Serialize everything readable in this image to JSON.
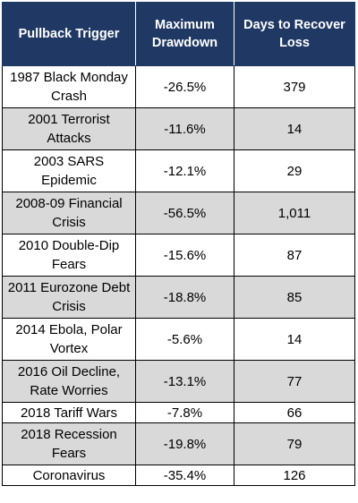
{
  "headers": {
    "trigger": "Pullback Trigger",
    "drawdown": "Maximum Drawdown",
    "days": "Days to Recover Loss"
  },
  "rows": [
    {
      "trigger": "1987 Black Monday Crash",
      "drawdown": "-26.5%",
      "days": "379"
    },
    {
      "trigger": "2001 Terrorist Attacks",
      "drawdown": "-11.6%",
      "days": "14"
    },
    {
      "trigger": "2003 SARS Epidemic",
      "drawdown": "-12.1%",
      "days": "29"
    },
    {
      "trigger": "2008-09 Financial Crisis",
      "drawdown": "-56.5%",
      "days": "1,011"
    },
    {
      "trigger": "2010 Double-Dip Fears",
      "drawdown": "-15.6%",
      "days": "87"
    },
    {
      "trigger": "2011 Eurozone Debt Crisis",
      "drawdown": "-18.8%",
      "days": "85"
    },
    {
      "trigger": "2014 Ebola, Polar Vortex",
      "drawdown": "-5.6%",
      "days": "14"
    },
    {
      "trigger": "2016 Oil Decline, Rate Worries",
      "drawdown": "-13.1%",
      "days": "77"
    },
    {
      "trigger": "2018 Tariff Wars",
      "drawdown": "-7.8%",
      "days": "66"
    },
    {
      "trigger": "2018 Recession Fears",
      "drawdown": "-19.8%",
      "days": "79"
    },
    {
      "trigger": "Coronavirus",
      "drawdown": "-35.4%",
      "days": "126"
    }
  ],
  "colors": {
    "header_bg": "#1f3864",
    "header_text": "#ffffff",
    "shaded_row": "#d9d9d9",
    "plain_row": "#ffffff",
    "border": "#000000"
  }
}
